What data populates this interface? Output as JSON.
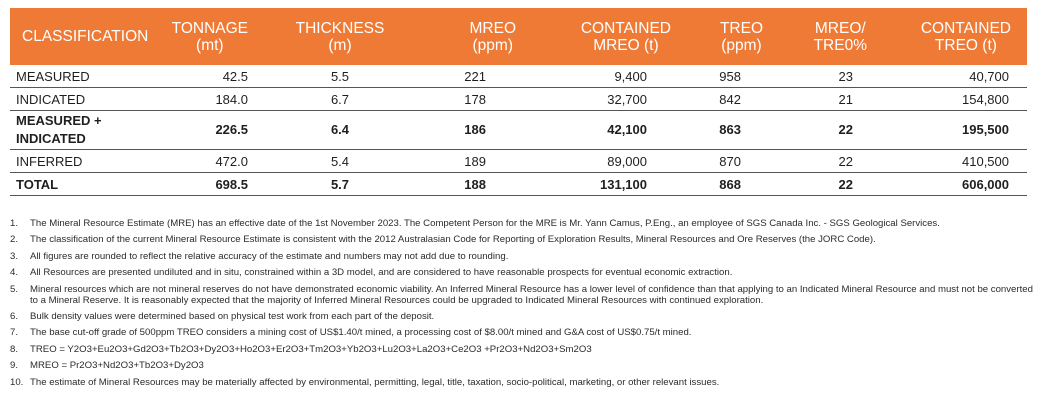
{
  "table": {
    "headers": [
      {
        "line1": "CLASSIFICATION",
        "line2": ""
      },
      {
        "line1": "TONNAGE",
        "line2": "(mt)"
      },
      {
        "line1": "THICKNESS",
        "line2": "(m)"
      },
      {
        "line1": "MREO",
        "line2": "(ppm)"
      },
      {
        "line1": "CONTAINED",
        "line2": "MREO (t)"
      },
      {
        "line1": "TREO",
        "line2": "(ppm)"
      },
      {
        "line1": "MREO/",
        "line2": "TRE0%"
      },
      {
        "line1": "CONTAINED",
        "line2": "TREO (t)"
      }
    ],
    "rows": [
      {
        "cells": [
          "MEASURED",
          "42.5",
          "5.5",
          "221",
          "9,400",
          "958",
          "23",
          "40,700"
        ],
        "bold": false,
        "tall": false
      },
      {
        "cells": [
          "INDICATED",
          "184.0",
          "6.7",
          "178",
          "32,700",
          "842",
          "21",
          "154,800"
        ],
        "bold": false,
        "tall": false
      },
      {
        "cells": [
          "MEASURED + INDICATED",
          "226.5",
          "6.4",
          "186",
          "42,100",
          "863",
          "22",
          "195,500"
        ],
        "bold": true,
        "tall": true
      },
      {
        "cells": [
          "INFERRED",
          "472.0",
          "5.4",
          "189",
          "89,000",
          "870",
          "22",
          "410,500"
        ],
        "bold": false,
        "tall": false
      },
      {
        "cells": [
          "TOTAL",
          "698.5",
          "5.7",
          "188",
          "131,100",
          "868",
          "22",
          "606,000"
        ],
        "bold": true,
        "tall": false
      }
    ]
  },
  "notes": [
    {
      "num": "1.",
      "text": "The Mineral Resource Estimate (MRE) has an effective date of the 1st November 2023. The Competent Person for the MRE is Mr. Yann Camus, P.Eng., an employee of SGS Canada Inc. - SGS Geological Services."
    },
    {
      "num": "2.",
      "text": "The classification of the current Mineral Resource Estimate is consistent with the 2012 Australasian Code for Reporting of Exploration Results, Mineral Resources and Ore Reserves (the JORC Code)."
    },
    {
      "num": "3.",
      "text": "All figures are rounded to reflect the relative accuracy of the estimate and numbers may not add due to rounding."
    },
    {
      "num": "4.",
      "text": "All Resources are presented undiluted and in situ, constrained within a 3D model, and are considered to have reasonable prospects for eventual economic extraction."
    },
    {
      "num": "5.",
      "text": "Mineral resources which are not mineral reserves do not have demonstrated economic viability. An Inferred Mineral Resource has a lower level of confidence than that applying to an Indicated Mineral Resource and must not be converted to a Mineral Reserve. It is reasonably expected that the majority of Inferred Mineral Resources could be upgraded to Indicated Mineral Resources with continued exploration."
    },
    {
      "num": "6.",
      "text": "Bulk density values were determined based on physical test work from each part of the deposit."
    },
    {
      "num": "7.",
      "text": "The base cut-off grade of 500ppm TREO considers a mining cost of US$1.40/t mined, a processing cost of $8.00/t mined and G&A cost of US$0.75/t mined."
    },
    {
      "num": "8.",
      "text": "TREO = Y2O3+Eu2O3+Gd2O3+Tb2O3+Dy2O3+Ho2O3+Er2O3+Tm2O3+Yb2O3+Lu2O3+La2O3+Ce2O3 +Pr2O3+Nd2O3+Sm2O3"
    },
    {
      "num": "9.",
      "text": "MREO = Pr2O3+Nd2O3+Tb2O3+Dy2O3"
    },
    {
      "num": "10.",
      "text": "The estimate of Mineral Resources may be materially affected by environmental, permitting, legal, title, taxation, socio-political, marketing, or other relevant issues."
    }
  ],
  "colors": {
    "header_bg": "#ee7a35",
    "header_text": "#ffffff"
  }
}
